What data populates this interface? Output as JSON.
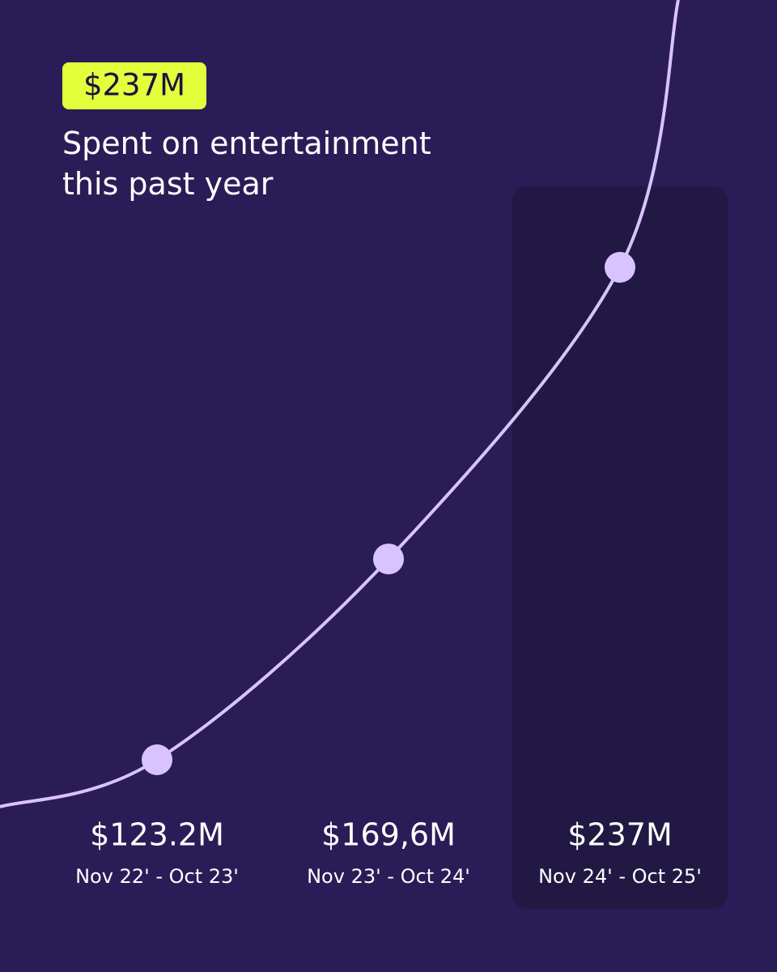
{
  "chart_data": {
    "type": "line",
    "badge": "$237M",
    "subtitle": "Spent on entertainment this past year",
    "categories": [
      "Nov 22' - Oct 23'",
      "Nov 23' - Oct 24'",
      "Nov 24' - Oct 25'"
    ],
    "values": [
      123.2,
      169.6,
      237
    ],
    "value_labels": [
      "$123.2M",
      "$169,6M",
      "$237M"
    ],
    "color": "#d9c3ff",
    "badge_color": "#e2ff3c",
    "highlight_index": 2
  }
}
